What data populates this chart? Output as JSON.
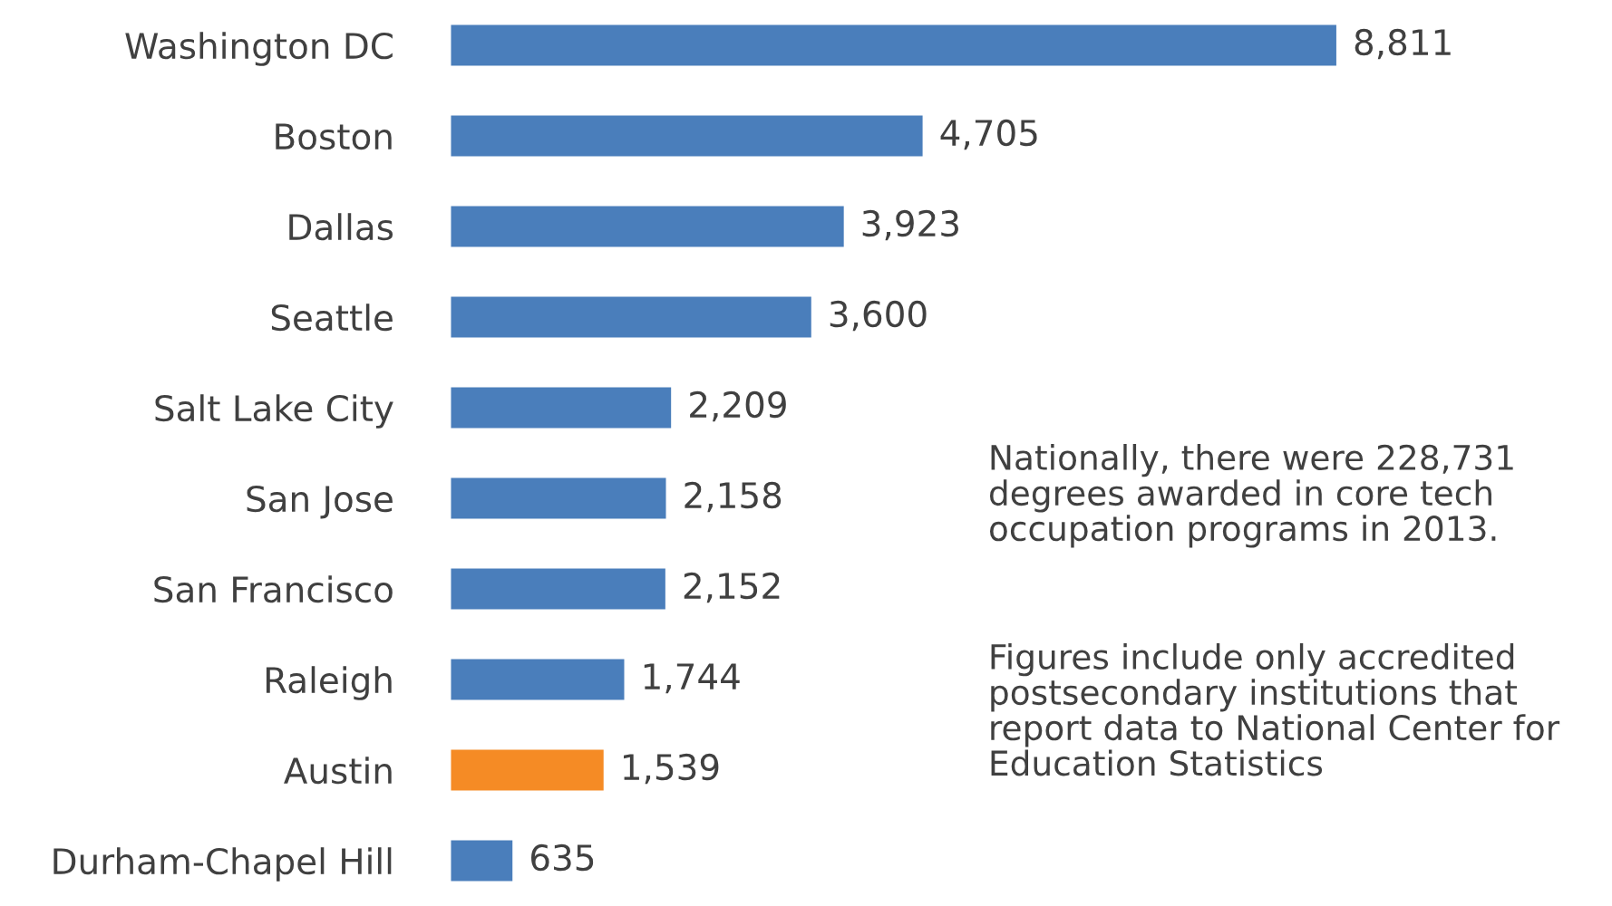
{
  "chart_data": {
    "type": "bar",
    "orientation": "horizontal",
    "categories": [
      "Washington DC",
      "Boston",
      "Dallas",
      "Seattle",
      "Salt Lake City",
      "San Jose",
      "San Francisco",
      "Raleigh",
      "Austin",
      "Durham-Chapel Hill"
    ],
    "values": [
      8811,
      4705,
      3923,
      3600,
      2209,
      2158,
      2152,
      1744,
      1539,
      635
    ],
    "colors": [
      "#4a7ebb",
      "#4a7ebb",
      "#4a7ebb",
      "#4a7ebb",
      "#4a7ebb",
      "#4a7ebb",
      "#4a7ebb",
      "#4a7ebb",
      "#f58b25",
      "#4a7ebb"
    ],
    "value_labels": [
      "8,811",
      "4,705",
      "3,923",
      "3,600",
      "2,209",
      "2,158",
      "2,152",
      "1,744",
      "1,539",
      "635"
    ],
    "annotations": [
      "Nationally, there were 228,731 degrees awarded in core tech occupation programs in 2013.",
      "Figures include only accredited postsecondary institutions that report data to National Center for Education Statistics"
    ]
  }
}
